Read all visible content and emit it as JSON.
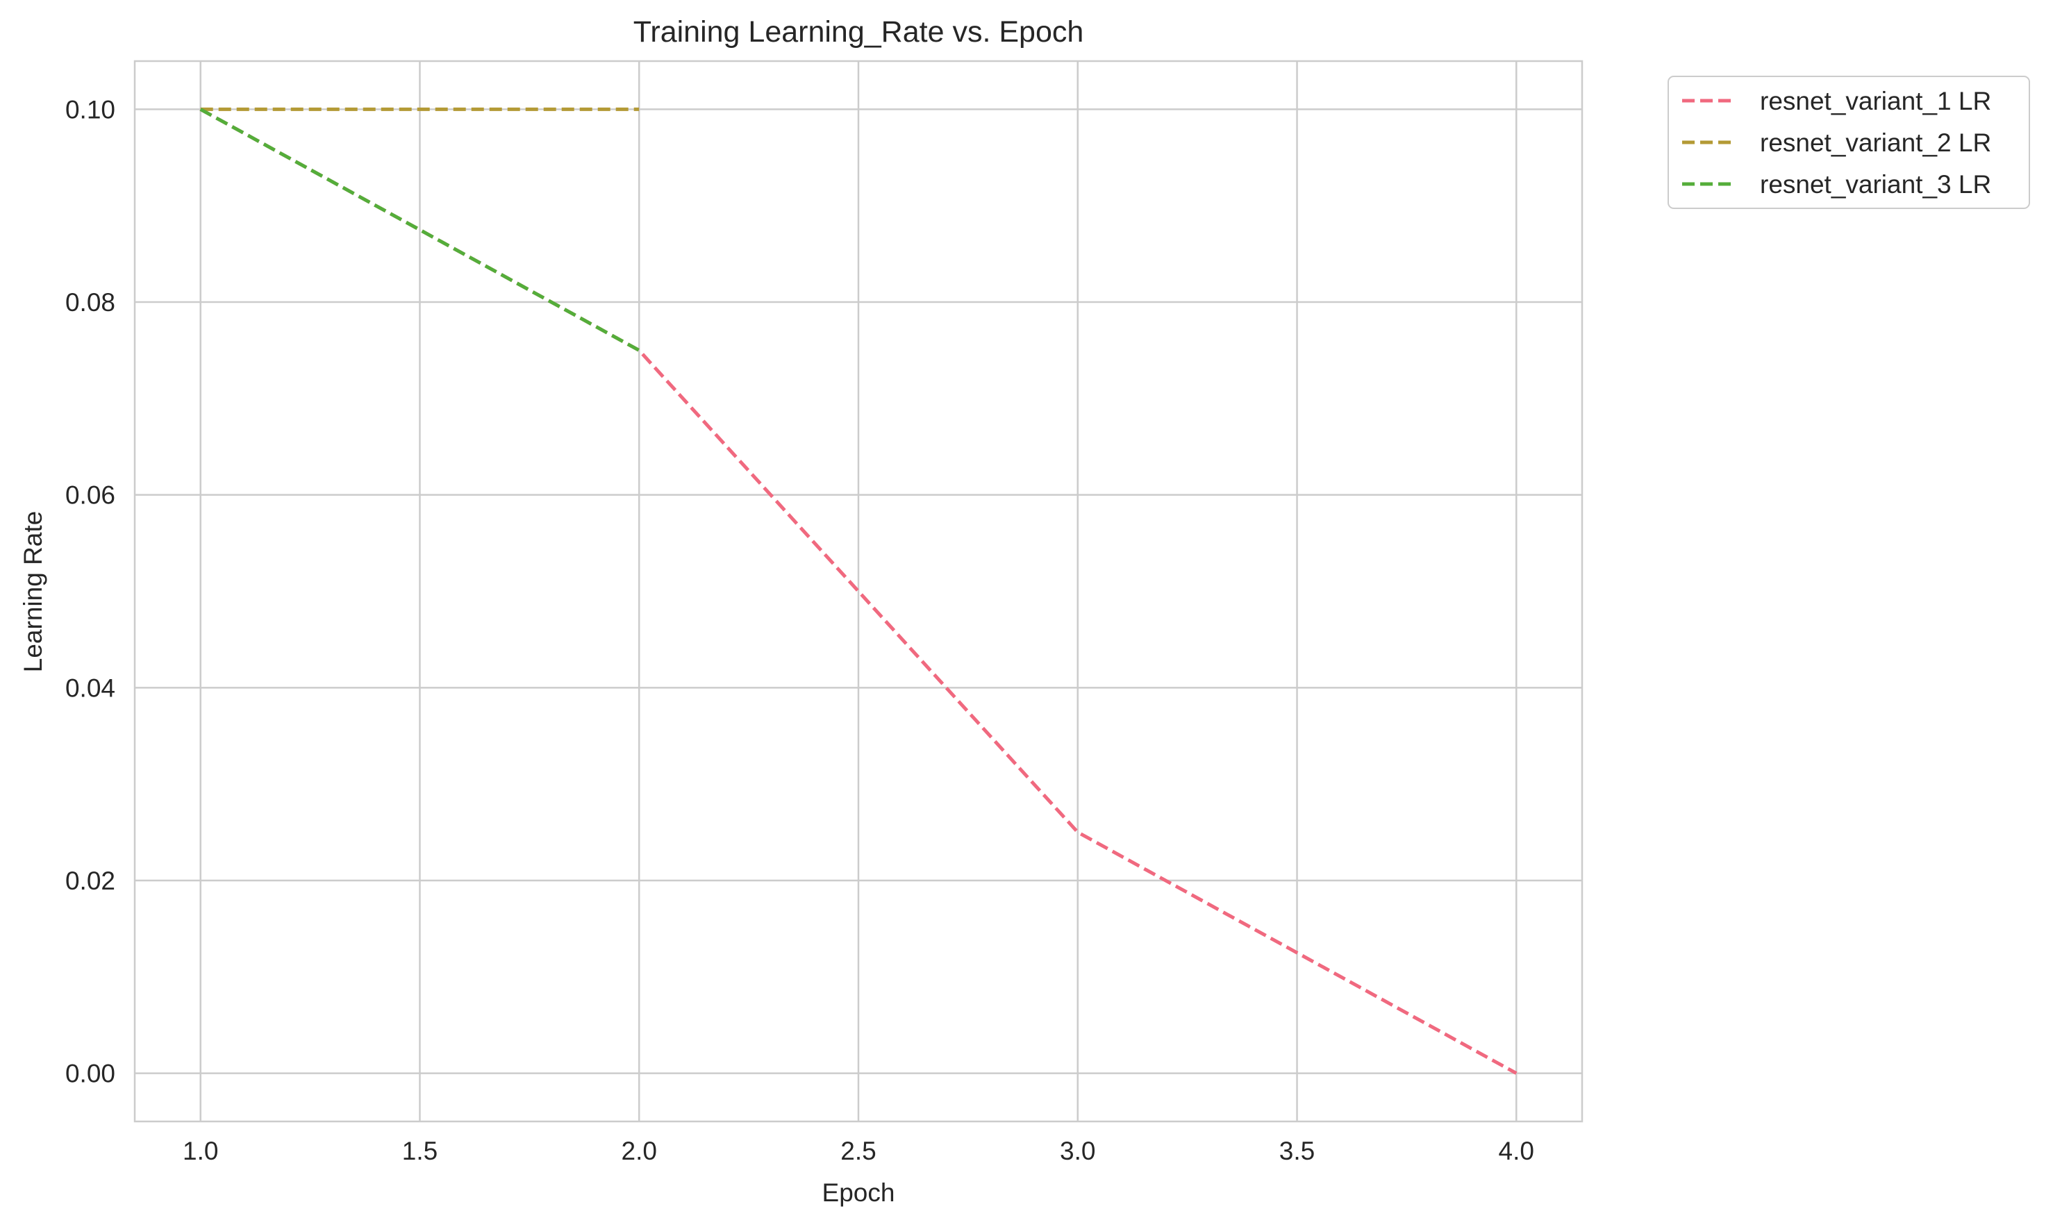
{
  "chart_data": {
    "type": "line",
    "title": "Training Learning_Rate vs. Epoch",
    "xlabel": "Epoch",
    "ylabel": "Learning Rate",
    "xlim": [
      0.85,
      4.15
    ],
    "ylim": [
      -0.005,
      0.105
    ],
    "xticks": [
      1.0,
      1.5,
      2.0,
      2.5,
      3.0,
      3.5,
      4.0
    ],
    "xtick_labels": [
      "1.0",
      "1.5",
      "2.0",
      "2.5",
      "3.0",
      "3.5",
      "4.0"
    ],
    "yticks": [
      0.0,
      0.02,
      0.04,
      0.06,
      0.08,
      0.1
    ],
    "ytick_labels": [
      "0.00",
      "0.02",
      "0.04",
      "0.06",
      "0.08",
      "0.10"
    ],
    "grid": true,
    "legend_placement": "outside top-right",
    "series": [
      {
        "name": "resnet_variant_1 LR",
        "color": "#f0697f",
        "dash": "dashed",
        "x": [
          1,
          2,
          3,
          4
        ],
        "y": [
          0.1,
          0.075,
          0.025,
          0.0
        ]
      },
      {
        "name": "resnet_variant_2 LR",
        "color": "#b39a35",
        "dash": "dashed",
        "x": [
          1,
          2
        ],
        "y": [
          0.1,
          0.1
        ]
      },
      {
        "name": "resnet_variant_3 LR",
        "color": "#54ad3a",
        "dash": "dashed",
        "x": [
          1,
          2
        ],
        "y": [
          0.1,
          0.075
        ]
      }
    ]
  }
}
